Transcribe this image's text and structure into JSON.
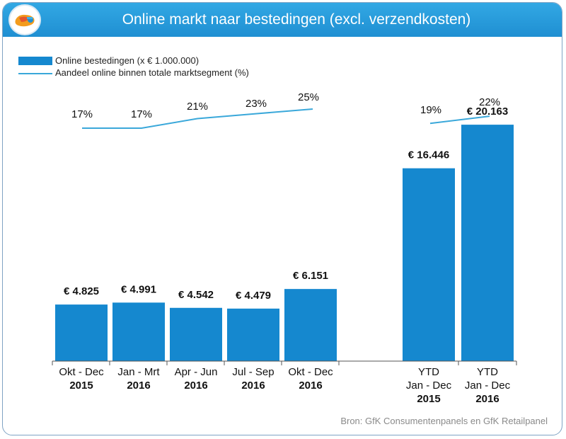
{
  "title": "Online markt naar bestedingen (excl. verzendkosten)",
  "legend": {
    "bar_label": "Online bestedingen (x € 1.000.000)",
    "line_label": "Aandeel online binnen totale marktsegment (%)"
  },
  "source": "Bron: GfK Consumentenpanels en GfK Retailpanel",
  "colors": {
    "header": "#1f8fd2",
    "bar": "#1588cf",
    "line": "#3aa8da",
    "border": "#7fa3c4"
  },
  "chart_data": {
    "type": "bar",
    "title": "Online markt naar bestedingen (excl. verzendkosten)",
    "categories": [
      [
        "Okt - Dec",
        "2015"
      ],
      [
        "Jan - Mrt",
        "2016"
      ],
      [
        "Apr - Jun",
        "2016"
      ],
      [
        "Jul - Sep",
        "2016"
      ],
      [
        "Okt - Dec",
        "2016"
      ],
      [
        "YTD",
        "Jan - Dec",
        "2015"
      ],
      [
        "YTD",
        "Jan - Dec",
        "2016"
      ]
    ],
    "series": [
      {
        "name": "Online bestedingen (x € 1.000.000)",
        "type": "bar",
        "values": [
          4825,
          4991,
          4542,
          4479,
          6151,
          16446,
          20163
        ],
        "labels": [
          "€ 4.825",
          "€ 4.991",
          "€ 4.542",
          "€ 4.479",
          "€ 6.151",
          "€ 16.446",
          "€ 20.163"
        ]
      },
      {
        "name": "Aandeel online binnen totale marktsegment (%)",
        "type": "line",
        "values": [
          17,
          17,
          21,
          23,
          25,
          19,
          22
        ],
        "labels": [
          "17%",
          "17%",
          "21%",
          "23%",
          "25%",
          "19%",
          "22%"
        ],
        "segments": [
          [
            0,
            4
          ],
          [
            5,
            6
          ]
        ]
      }
    ],
    "ylim": [
      0,
      25000
    ],
    "line_ylim": [
      17,
      25
    ],
    "xlabel": "",
    "ylabel": "",
    "grid": false,
    "legend": "top-left"
  }
}
